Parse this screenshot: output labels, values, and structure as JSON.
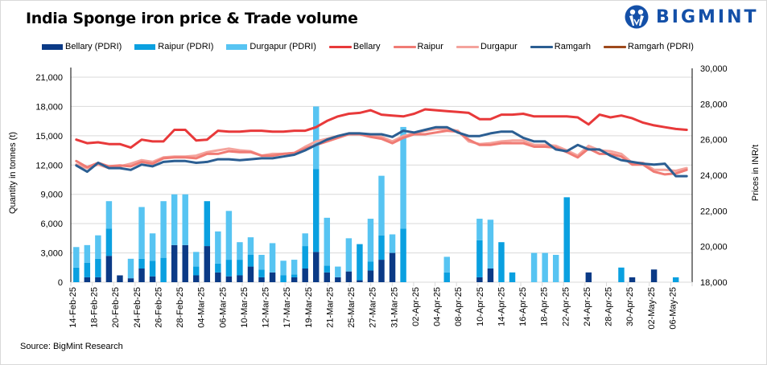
{
  "title": "India Sponge iron price & Trade volume",
  "logo": {
    "text": "BIGMINT",
    "icon": "bigmint-people-icon",
    "color": "#1450a8"
  },
  "source": "Source: BigMint Research",
  "legend": [
    {
      "label": "Bellary (PDRI)",
      "type": "bar",
      "color": "#0b3a86"
    },
    {
      "label": "Raipur (PDRI)",
      "type": "bar",
      "color": "#0aa0e0"
    },
    {
      "label": "Durgapur (PDRI)",
      "type": "bar",
      "color": "#57c4f2"
    },
    {
      "label": "Bellary",
      "type": "line",
      "color": "#e8393a"
    },
    {
      "label": "Raipur",
      "type": "line",
      "color": "#f07b74"
    },
    {
      "label": "Durgapur",
      "type": "line",
      "color": "#f4a39c"
    },
    {
      "label": "Ramgarh",
      "type": "line",
      "color": "#2b5e92"
    },
    {
      "label": "Ramgarh (PDRI)",
      "type": "line",
      "color": "#9e4a1c"
    }
  ],
  "chart_data": {
    "type": "bar+line",
    "title": "India Sponge iron price & Trade volume",
    "ylabel": "Quantity in tonnes (t)",
    "y2label": "Prices in INR/t",
    "ylim": [
      0,
      21000
    ],
    "y2lim": [
      18000,
      30000
    ],
    "yticks": [
      "0",
      "3,000",
      "6,000",
      "9,000",
      "12,000",
      "15,000",
      "18,000",
      "21,000"
    ],
    "y2ticks": [
      "18,000",
      "20,000",
      "22,000",
      "24,000",
      "26,000",
      "28,000",
      "30,000"
    ],
    "grid": true,
    "legend_position": "top",
    "xtick_labels": [
      "14-Feb-25",
      "18-Feb-25",
      "20-Feb-25",
      "24-Feb-25",
      "26-Feb-25",
      "28-Feb-25",
      "04-Mar-25",
      "06-Mar-25",
      "10-Mar-25",
      "12-Mar-25",
      "17-Mar-25",
      "19-Mar-25",
      "21-Mar-25",
      "25-Mar-25",
      "27-Mar-25",
      "31-Mar-25",
      "02-Apr-25",
      "04-Apr-25",
      "08-Apr-25",
      "10-Apr-25",
      "14-Apr-25",
      "16-Apr-25",
      "18-Apr-25",
      "22-Apr-25",
      "24-Apr-25",
      "28-Apr-25",
      "30-Apr-25",
      "02-May-25",
      "06-May-25"
    ],
    "bar_series": [
      {
        "name": "Bellary (PDRI)",
        "values": [
          0,
          500,
          500,
          2700,
          700,
          400,
          1400,
          600,
          0,
          3800,
          3800,
          700,
          3700,
          1000,
          600,
          700,
          1600,
          500,
          1000,
          0,
          500,
          1400,
          3100,
          1000,
          500,
          1100,
          200,
          1200,
          2300,
          3000,
          0,
          0,
          0,
          0,
          0,
          0,
          0,
          500,
          1400,
          0,
          0,
          0,
          0,
          0,
          0,
          0,
          0,
          1000,
          0,
          0,
          0,
          500,
          0,
          1300,
          0,
          0,
          0
        ]
      },
      {
        "name": "Raipur (PDRI)",
        "values": [
          1500,
          1500,
          1900,
          2800,
          0,
          0,
          1000,
          1600,
          2500,
          0,
          0,
          900,
          4600,
          900,
          1700,
          1600,
          1200,
          800,
          0,
          700,
          300,
          2300,
          8500,
          700,
          0,
          0,
          3700,
          900,
          2500,
          0,
          5500,
          0,
          0,
          0,
          1000,
          0,
          0,
          3800,
          0,
          4100,
          1000,
          0,
          0,
          0,
          0,
          8700,
          0,
          0,
          0,
          0,
          1500,
          0,
          0,
          0,
          0,
          500,
          0
        ]
      },
      {
        "name": "Durgapur (PDRI)",
        "values": [
          2100,
          1800,
          2400,
          2800,
          0,
          2000,
          5300,
          2800,
          5800,
          5200,
          5200,
          1500,
          0,
          3300,
          5000,
          1800,
          1800,
          1500,
          3000,
          1500,
          1500,
          1300,
          6400,
          4900,
          1100,
          3400,
          0,
          4400,
          6100,
          1900,
          10400,
          0,
          0,
          0,
          1600,
          0,
          0,
          2200,
          5000,
          0,
          0,
          0,
          3000,
          3000,
          2800,
          0,
          0,
          0,
          0,
          0,
          0,
          0,
          0,
          0,
          0,
          0,
          0
        ]
      }
    ],
    "line_series": [
      {
        "name": "Bellary",
        "axis": "right",
        "values": [
          26000,
          25800,
          25850,
          25750,
          25750,
          25550,
          26000,
          25900,
          25900,
          26550,
          26550,
          25950,
          26000,
          26500,
          26450,
          26450,
          26500,
          26500,
          26450,
          26450,
          26500,
          26500,
          26700,
          27050,
          27300,
          27450,
          27500,
          27650,
          27400,
          27350,
          27300,
          27450,
          27700,
          27650,
          27600,
          27550,
          27500,
          27150,
          27150,
          27400,
          27400,
          27450,
          27300,
          27300,
          27300,
          27300,
          27250,
          26850,
          27400,
          27250,
          27350,
          27200,
          26950,
          26800,
          26700,
          26600,
          26550
        ]
      },
      {
        "name": "Raipur",
        "axis": "right",
        "values": [
          24800,
          24450,
          24700,
          24500,
          24550,
          24500,
          24750,
          24650,
          24950,
          25000,
          25000,
          24950,
          25200,
          25200,
          25350,
          25300,
          25300,
          25100,
          25100,
          25200,
          25250,
          25500,
          25700,
          25900,
          26100,
          26300,
          26300,
          26150,
          26050,
          25800,
          26100,
          26300,
          26300,
          26400,
          26500,
          26450,
          26000,
          25700,
          25700,
          25800,
          25800,
          25800,
          25600,
          25600,
          25550,
          25300,
          25000,
          25500,
          25200,
          25200,
          25050,
          24600,
          24600,
          24200,
          24050,
          24100,
          24300
        ]
      },
      {
        "name": "Durgapur",
        "axis": "right",
        "values": [
          24600,
          24400,
          24600,
          24400,
          24500,
          24650,
          24850,
          24750,
          25000,
          25050,
          25050,
          25100,
          25300,
          25400,
          25500,
          25400,
          25350,
          25100,
          25200,
          25200,
          25250,
          25600,
          25900,
          26050,
          26200,
          26350,
          26350,
          26200,
          26150,
          25900,
          26200,
          26350,
          26500,
          26600,
          26600,
          26500,
          25900,
          25750,
          25800,
          25900,
          25950,
          25950,
          25700,
          25700,
          25650,
          25400,
          25100,
          25650,
          25400,
          25350,
          25200,
          24700,
          24700,
          24300,
          24300,
          24250,
          24400
        ]
      },
      {
        "name": "Ramgarh",
        "axis": "right",
        "values": [
          24550,
          24200,
          24700,
          24400,
          24400,
          24300,
          24600,
          24500,
          24750,
          24800,
          24800,
          24700,
          24750,
          24900,
          24900,
          24850,
          24900,
          24950,
          24950,
          25050,
          25150,
          25400,
          25700,
          26000,
          26200,
          26350,
          26350,
          26300,
          26300,
          26150,
          26500,
          26400,
          26550,
          26700,
          26700,
          26400,
          26200,
          26200,
          26350,
          26450,
          26450,
          26100,
          25900,
          25900,
          25450,
          25350,
          25700,
          25450,
          25450,
          25100,
          24850,
          24750,
          24650,
          24600,
          24650,
          23950,
          23950
        ]
      },
      {
        "name": "Ramgarh (PDRI)",
        "axis": "right",
        "values": []
      }
    ]
  }
}
